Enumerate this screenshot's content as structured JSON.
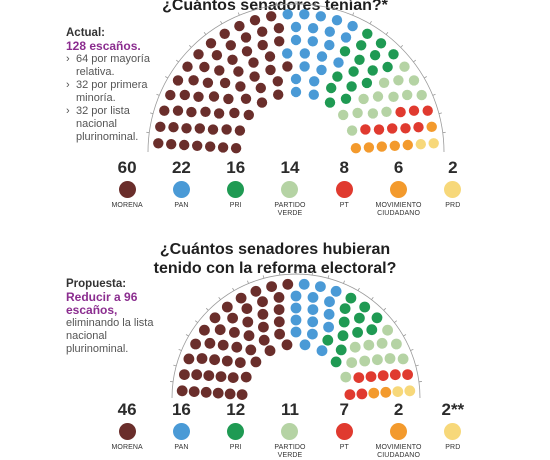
{
  "colors": {
    "MORENA": "#6a2e2b",
    "PAN": "#4a9ad6",
    "PRI": "#1f9a53",
    "PARTIDO VERDE": "#b5d3a4",
    "PT": "#e03a2f",
    "MOVIMIENTO CIUDADANO": "#f39a2d",
    "PRD": "#f7d87a"
  },
  "actual": {
    "title": "¿Cuántos senadores tenían?*",
    "label": "Actual:",
    "highlight": "128 escaños.",
    "bullets": [
      "64 por mayoría relativa.",
      "32 por primera minoría.",
      "32 por lista nacional plurinominal."
    ]
  },
  "propuesta": {
    "title": "¿Cuántos senadores hubieran tenido con la reforma electoral?",
    "label": "Propuesta:",
    "highlight": "Reducir a 96 escaños,",
    "text": "eliminando la lista nacional plurinominal."
  },
  "chart_data": [
    {
      "type": "parliament",
      "title": "¿Cuántos senadores tenían?*",
      "categories": [
        "MORENA",
        "PAN",
        "PRI",
        "PARTIDO VERDE",
        "PT",
        "MOVIMIENTO CIUDADANO",
        "PRD"
      ],
      "values": [
        60,
        22,
        16,
        14,
        8,
        6,
        2
      ],
      "labels": [
        "60",
        "22",
        "16",
        "14",
        "8",
        "6",
        "2"
      ]
    },
    {
      "type": "parliament",
      "title": "¿Cuántos senadores hubieran tenido con la reforma electoral?",
      "categories": [
        "MORENA",
        "PAN",
        "PRI",
        "PARTIDO VERDE",
        "PT",
        "MOVIMIENTO CIUDADANO",
        "PRD"
      ],
      "values": [
        46,
        16,
        12,
        11,
        7,
        2,
        2
      ],
      "labels": [
        "46",
        "16",
        "12",
        "11",
        "7",
        "2",
        "2**"
      ]
    }
  ]
}
